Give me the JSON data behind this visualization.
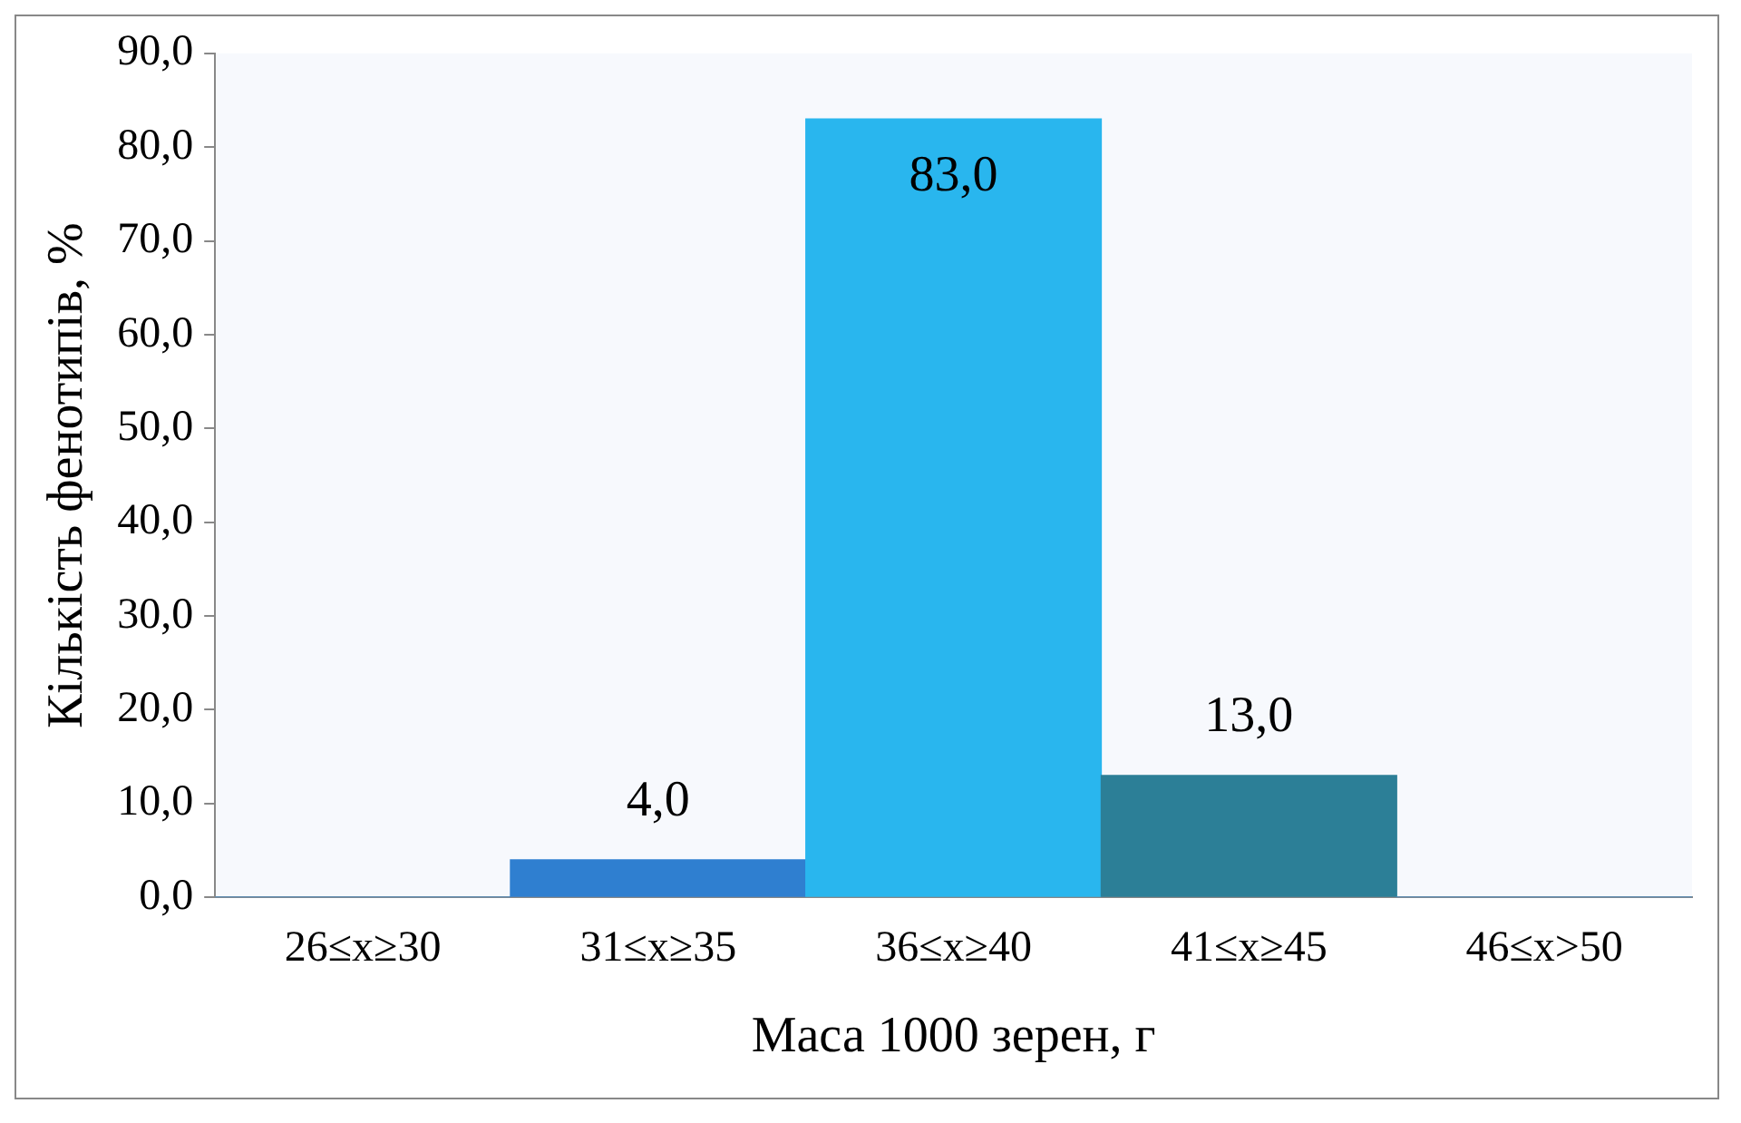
{
  "chart_data": {
    "type": "bar",
    "xlabel": "Маса 1000 зерен, г",
    "ylabel": "Кількість фенотипів, %",
    "categories": [
      "26≤x≥30",
      "31≤x≥35",
      "36≤x≥40",
      "41≤x≥45",
      "46≤x>50"
    ],
    "values": [
      0,
      4,
      83,
      13,
      0
    ],
    "colors": [
      "#3a8fd8",
      "#2f7fd0",
      "#29b6ee",
      "#2c7f97",
      "#3a8fd8"
    ],
    "value_labels": [
      null,
      "4,0",
      "83,0",
      "13,0",
      null
    ],
    "ylim": [
      0,
      90
    ],
    "yticks": [
      {
        "value": 0,
        "label": "0,0"
      },
      {
        "value": 10,
        "label": "10,0"
      },
      {
        "value": 20,
        "label": "20,0"
      },
      {
        "value": 30,
        "label": "30,0"
      },
      {
        "value": 40,
        "label": "40,0"
      },
      {
        "value": 50,
        "label": "50,0"
      },
      {
        "value": 60,
        "label": "60,0"
      },
      {
        "value": 70,
        "label": "70,0"
      },
      {
        "value": 80,
        "label": "80,0"
      },
      {
        "value": 90,
        "label": "90,0"
      }
    ],
    "grid": false,
    "legend": false
  }
}
